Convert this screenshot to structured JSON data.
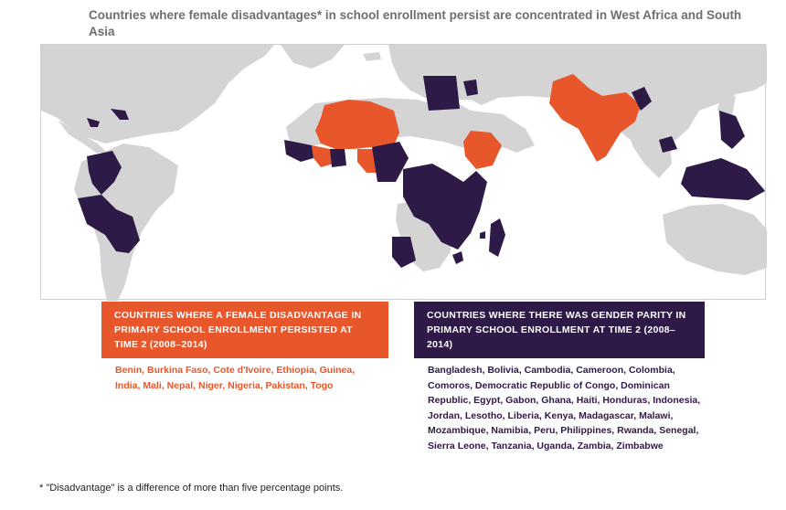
{
  "title": "Countries where female disadvantages* in school enrollment persist are concentrated in West Africa and South Asia",
  "colors": {
    "female_disadvantage": "#e8562b",
    "gender_parity": "#2e1a47",
    "other_land": "#d4d4d4",
    "ocean": "#ffffff"
  },
  "legend": {
    "disadvantage": {
      "heading": "COUNTRIES WHERE A FEMALE DISADVANTAGE IN PRIMARY SCHOOL ENROLLMENT PERSISTED AT TIME 2 (2008–2014)",
      "countries": "Benin, Burkina Faso, Cote d'Ivoire, Ethiopia, Guinea, India, Mali, Nepal, Niger, Nigeria, Pakistan, Togo"
    },
    "parity": {
      "heading": "COUNTRIES WHERE THERE WAS GENDER PARITY IN PRIMARY SCHOOL ENROLLMENT AT TIME 2 (2008–2014)",
      "countries": "Bangladesh, Bolivia, Cambodia, Cameroon, Colombia, Comoros, Democratic Republic of Congo, Dominican Republic, Egypt, Gabon, Ghana, Haiti, Honduras, Indonesia, Jordan, Lesotho, Liberia, Kenya, Madagascar, Malawi, Mozambique, Namibia, Peru, Philippines, Rwanda, Senegal, Sierra Leone, Tanzania, Uganda, Zambia, Zimbabwe"
    }
  },
  "footnote": "* \"Disadvantage\" is a difference of more than five percentage points."
}
